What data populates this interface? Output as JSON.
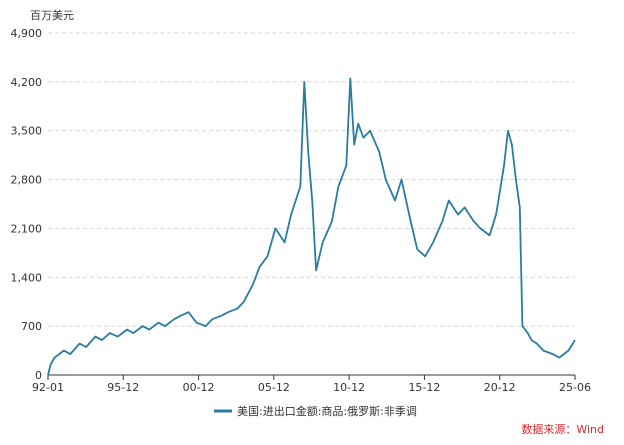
{
  "chart_data": {
    "type": "line",
    "unit_label": "百万美元",
    "source_label": "数据来源：Wind",
    "ylim": [
      0,
      4900
    ],
    "yticks": [
      0,
      700,
      1400,
      2100,
      2800,
      3500,
      4200,
      4900
    ],
    "ytick_labels": [
      "0",
      "700",
      "1,400",
      "2,100",
      "2,800",
      "3,500",
      "4,200",
      "4,900"
    ],
    "xticks": [
      "92-01",
      "95-12",
      "00-12",
      "05-12",
      "10-12",
      "15-12",
      "20-12",
      "25-06"
    ],
    "xlim": [
      "1992-01",
      "2025-06"
    ],
    "grid": "horizontal-dashed",
    "legend_position": "bottom",
    "colors": {
      "line": "#2a7ca3",
      "grid": "#d9d9d9",
      "axis": "#333333"
    },
    "series": [
      {
        "name": "美国:进出口金额:商品:俄罗斯:非季调",
        "x": [
          "1992-01",
          "1992-03",
          "1992-06",
          "1993-01",
          "1993-06",
          "1994-01",
          "1994-06",
          "1995-01",
          "1995-06",
          "1995-12",
          "1996-06",
          "1997-01",
          "1997-06",
          "1998-01",
          "1998-06",
          "1999-01",
          "1999-06",
          "2000-01",
          "2000-06",
          "2000-12",
          "2001-06",
          "2002-01",
          "2002-06",
          "2003-01",
          "2003-06",
          "2004-01",
          "2004-06",
          "2005-01",
          "2005-06",
          "2005-12",
          "2006-06",
          "2007-01",
          "2007-06",
          "2008-01",
          "2008-04",
          "2008-07",
          "2008-10",
          "2009-01",
          "2009-06",
          "2010-01",
          "2010-06",
          "2010-12",
          "2011-03",
          "2011-06",
          "2011-09",
          "2012-01",
          "2012-06",
          "2013-01",
          "2013-06",
          "2014-01",
          "2014-06",
          "2015-01",
          "2015-06",
          "2015-12",
          "2016-06",
          "2017-01",
          "2017-06",
          "2018-01",
          "2018-06",
          "2019-01",
          "2019-06",
          "2020-01",
          "2020-06",
          "2020-12",
          "2021-03",
          "2021-06",
          "2021-09",
          "2021-12",
          "2022-02",
          "2022-04",
          "2022-06",
          "2022-09",
          "2023-01",
          "2023-06",
          "2024-01",
          "2024-06",
          "2025-01",
          "2025-06"
        ],
        "values": [
          0,
          150,
          250,
          350,
          300,
          450,
          400,
          550,
          500,
          600,
          550,
          650,
          600,
          700,
          650,
          750,
          700,
          800,
          850,
          900,
          750,
          700,
          800,
          850,
          900,
          950,
          1050,
          1300,
          1550,
          1700,
          2100,
          1900,
          2300,
          2700,
          4200,
          3200,
          2500,
          1500,
          1900,
          2200,
          2700,
          3000,
          4250,
          3300,
          3600,
          3400,
          3500,
          3200,
          2800,
          2500,
          2800,
          2200,
          1800,
          1700,
          1900,
          2200,
          2500,
          2300,
          2400,
          2200,
          2100,
          2000,
          2300,
          3000,
          3500,
          3300,
          2800,
          2400,
          700,
          650,
          600,
          500,
          450,
          350,
          300,
          250,
          350,
          500
        ]
      }
    ]
  }
}
